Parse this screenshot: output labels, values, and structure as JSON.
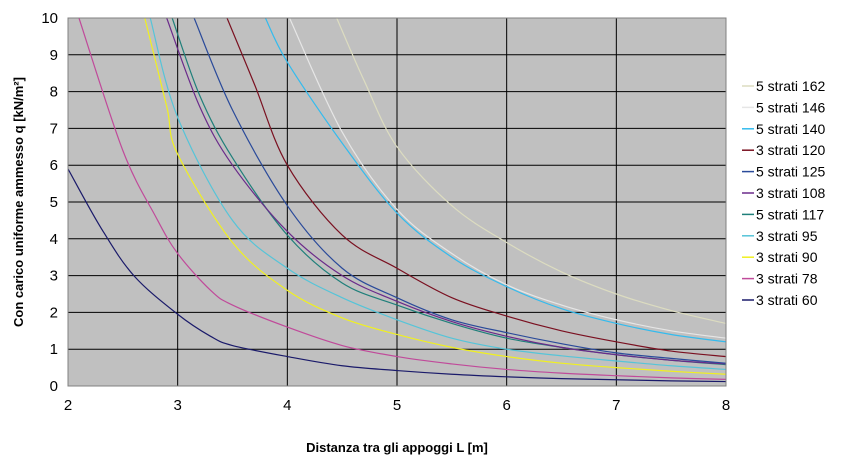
{
  "chart_data": {
    "type": "line",
    "title": "",
    "xlabel": "Distanza tra gli appoggi L [m]",
    "ylabel": "Con carico uniforme ammesso q [kN/m²]",
    "xlim": [
      2,
      8
    ],
    "ylim": [
      0,
      10
    ],
    "xticks": [
      "2",
      "3",
      "4",
      "5",
      "6",
      "7",
      "8"
    ],
    "yticks": [
      "0",
      "1",
      "2",
      "3",
      "4",
      "5",
      "6",
      "7",
      "8",
      "9",
      "10"
    ],
    "grid": true,
    "plot_background": "#C0C0C0",
    "legend_position": "right",
    "series": [
      {
        "name": "5 strati 162",
        "color": "#DCDCC0",
        "x": [
          4.45,
          4.7,
          5,
          5.5,
          6,
          6.5,
          7,
          7.5,
          8
        ],
        "y": [
          10,
          8.3,
          6.5,
          4.9,
          3.9,
          3.1,
          2.5,
          2.05,
          1.7
        ]
      },
      {
        "name": "5 strati 146",
        "color": "#E6E6E6",
        "x": [
          4.02,
          4.5,
          5,
          5.5,
          6,
          6.5,
          7,
          7.5,
          8
        ],
        "y": [
          10,
          6.9,
          4.8,
          3.6,
          2.75,
          2.2,
          1.8,
          1.5,
          1.3
        ]
      },
      {
        "name": "5 strati 140",
        "color": "#33BBEE",
        "x": [
          3.8,
          4,
          4.5,
          5,
          5.5,
          6,
          6.5,
          7,
          7.5,
          8
        ],
        "y": [
          10,
          8.8,
          6.6,
          4.7,
          3.5,
          2.7,
          2.1,
          1.7,
          1.4,
          1.2
        ]
      },
      {
        "name": "3 strati 120",
        "color": "#7A1020",
        "x": [
          3.45,
          3.7,
          4,
          4.5,
          5,
          5.5,
          6,
          6.5,
          7,
          7.5,
          8
        ],
        "y": [
          10,
          8.2,
          6.0,
          4.1,
          3.2,
          2.4,
          1.9,
          1.5,
          1.2,
          0.95,
          0.8
        ]
      },
      {
        "name": "5 strati 125",
        "color": "#2A4A9A",
        "x": [
          3.15,
          3.5,
          4,
          4.5,
          5,
          5.5,
          6,
          6.5,
          7,
          7.5,
          8
        ],
        "y": [
          10,
          7.5,
          4.9,
          3.2,
          2.4,
          1.8,
          1.45,
          1.15,
          0.9,
          0.75,
          0.62
        ]
      },
      {
        "name": "3 strati 108",
        "color": "#6A2A8A",
        "x": [
          2.9,
          3.2,
          3.5,
          4,
          4.5,
          5,
          5.5,
          6,
          6.5,
          7,
          7.5,
          8
        ],
        "y": [
          10,
          7.6,
          6.0,
          4.2,
          3.0,
          2.3,
          1.75,
          1.35,
          1.05,
          0.85,
          0.7,
          0.6
        ]
      },
      {
        "name": "5 strati 117",
        "color": "#1F7F7A",
        "x": [
          2.95,
          3.2,
          3.5,
          4,
          4.5,
          5,
          5.5,
          6,
          6.5,
          7,
          7.5,
          8
        ],
        "y": [
          10,
          7.9,
          6.2,
          4.1,
          2.8,
          2.2,
          1.7,
          1.3,
          1.05,
          0.85,
          0.7,
          0.58
        ]
      },
      {
        "name": "3 strati 95",
        "color": "#55C4D8",
        "x": [
          2.75,
          3,
          3.5,
          4,
          4.5,
          5,
          5.5,
          6,
          6.5,
          7,
          7.5,
          8
        ],
        "y": [
          10,
          7.3,
          4.5,
          3.2,
          2.4,
          1.8,
          1.3,
          1.0,
          0.82,
          0.68,
          0.55,
          0.45
        ]
      },
      {
        "name": "3 strati 90",
        "color": "#F0F020",
        "x": [
          2.7,
          2.9,
          3,
          3.5,
          4,
          4.5,
          5,
          5.5,
          6,
          6.5,
          7,
          7.5,
          8
        ],
        "y": [
          10,
          7.6,
          6.3,
          3.9,
          2.6,
          1.85,
          1.4,
          1.05,
          0.8,
          0.62,
          0.5,
          0.4,
          0.32
        ]
      },
      {
        "name": "3 strati 78",
        "color": "#C04A9A",
        "x": [
          2.1,
          2.5,
          2.8,
          3,
          3.3,
          3.5,
          4,
          4.5,
          5,
          5.5,
          6,
          6.5,
          7,
          7.5,
          8
        ],
        "y": [
          10,
          6.4,
          4.6,
          3.6,
          2.6,
          2.2,
          1.6,
          1.1,
          0.8,
          0.6,
          0.45,
          0.35,
          0.28,
          0.22,
          0.18
        ]
      },
      {
        "name": "3 strati 60",
        "color": "#1A1A6A",
        "x": [
          2,
          2.3,
          2.6,
          3,
          3.3,
          3.5,
          4,
          4.5,
          5,
          5.5,
          6,
          6.5,
          7,
          7.5,
          8
        ],
        "y": [
          5.9,
          4.3,
          3.0,
          1.95,
          1.35,
          1.1,
          0.8,
          0.55,
          0.42,
          0.32,
          0.25,
          0.2,
          0.17,
          0.14,
          0.12
        ]
      }
    ]
  }
}
